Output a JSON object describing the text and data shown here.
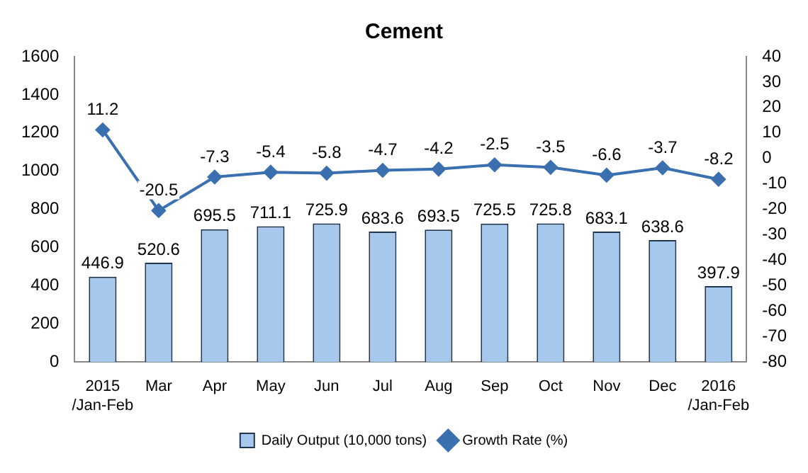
{
  "chart_data": {
    "type": "bar",
    "title": "Cement",
    "categories": [
      "2015\n/Jan-Feb",
      "Mar",
      "Apr",
      "May",
      "Jun",
      "Jul",
      "Aug",
      "Sep",
      "Oct",
      "Nov",
      "Dec",
      "2016\n/Jan-Feb"
    ],
    "series": [
      {
        "name": "Daily Output (10,000 tons)",
        "color": "#a6c8ec",
        "values": [
          446.9,
          520.6,
          695.5,
          711.1,
          725.9,
          683.6,
          693.5,
          725.5,
          725.8,
          683.1,
          638.6,
          397.9
        ]
      },
      {
        "name": "Growth Rate (%)",
        "type": "line",
        "axis": "y2",
        "color": "#3a6fb0",
        "marker": "diamond",
        "values": [
          11.2,
          -20.5,
          -7.3,
          -5.4,
          -5.8,
          -4.7,
          -4.2,
          -2.5,
          -3.5,
          -6.6,
          -3.7,
          -8.2
        ]
      }
    ],
    "ylim": [
      0,
      1600
    ],
    "yticks": [
      0,
      200,
      400,
      600,
      800,
      1000,
      1200,
      1400,
      1600
    ],
    "y2lim": [
      -80,
      40
    ],
    "y2ticks": [
      -80,
      -70,
      -60,
      -50,
      -40,
      -30,
      -20,
      -10,
      0,
      10,
      20,
      30,
      40
    ],
    "data_labels": true,
    "grid": false,
    "legend": "bottom"
  }
}
